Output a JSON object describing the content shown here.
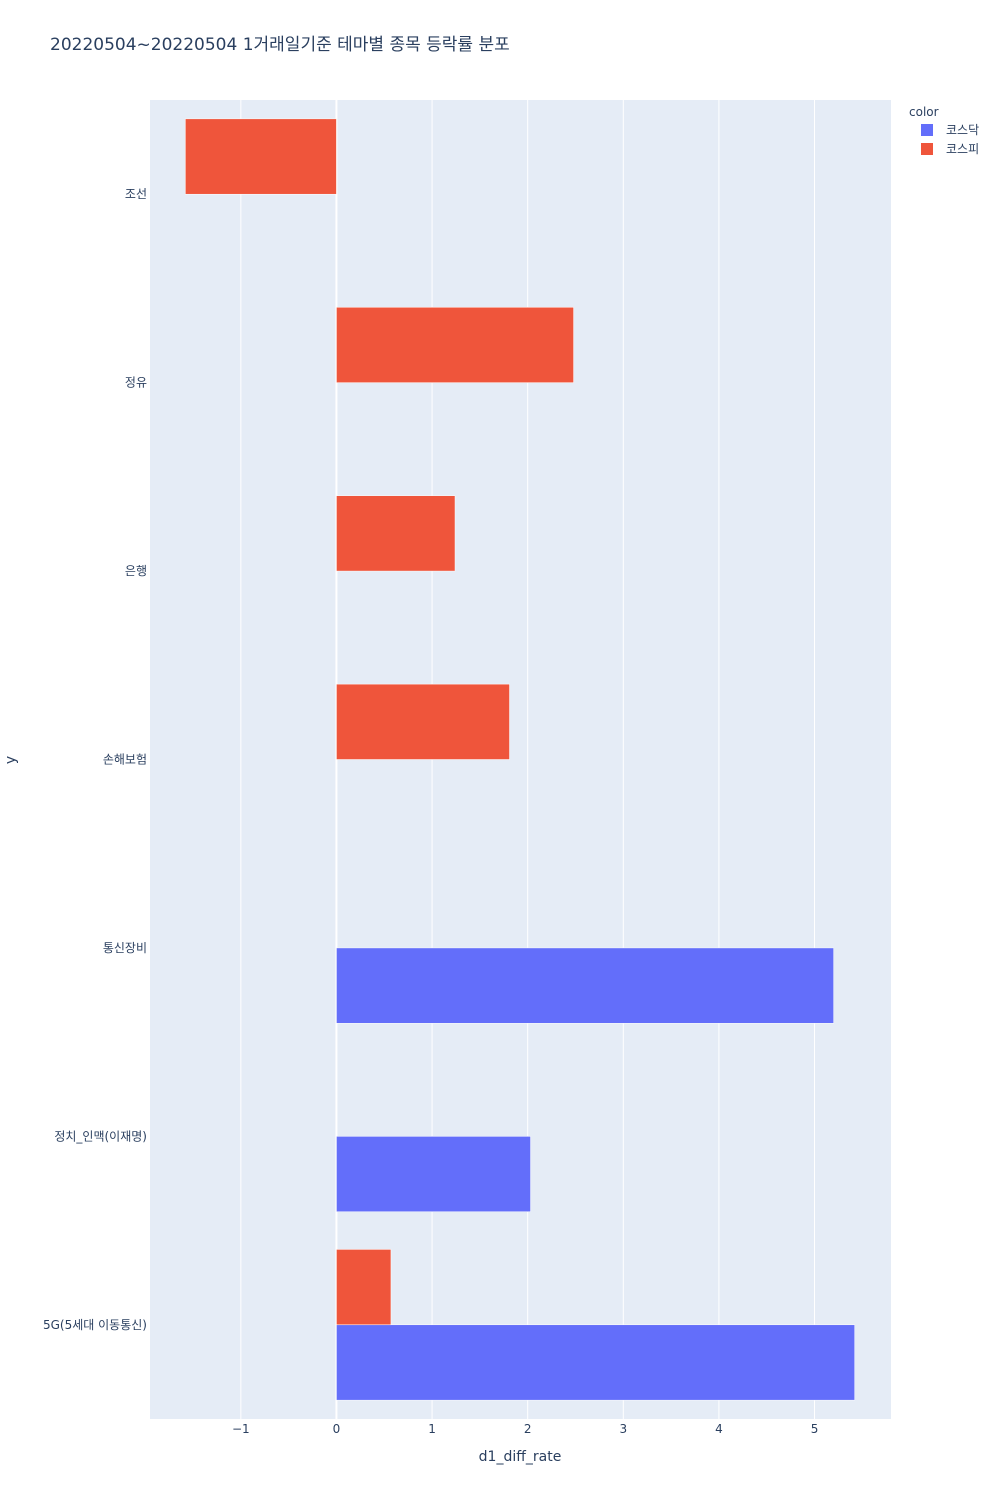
{
  "chart_data": {
    "type": "bar",
    "orientation": "horizontal",
    "barmode": "group",
    "title": "20220504~20220504 1거래일기준 테마별 종목 등락률 분포",
    "xlabel": "d1_diff_rate",
    "ylabel": "y",
    "xlim": [
      -1.95,
      5.8
    ],
    "x_ticks": [
      -1,
      0,
      1,
      2,
      3,
      4,
      5
    ],
    "x_tick_labels": [
      "−1",
      "0",
      "1",
      "2",
      "3",
      "4",
      "5"
    ],
    "categories": [
      "조선",
      "정유",
      "은행",
      "손해보험",
      "통신장비",
      "정치_인맥(이재명)",
      "5G(5세대 이동통신)"
    ],
    "grid": true,
    "legend_title": "color",
    "legend_position": "top-right",
    "series": [
      {
        "name": "코스닥",
        "color": "#636efa",
        "values": [
          null,
          null,
          null,
          null,
          5.2,
          2.03,
          5.42
        ]
      },
      {
        "name": "코스피",
        "color": "#ef553b",
        "values": [
          -1.58,
          2.48,
          1.24,
          1.81,
          null,
          null,
          0.57
        ]
      }
    ]
  }
}
